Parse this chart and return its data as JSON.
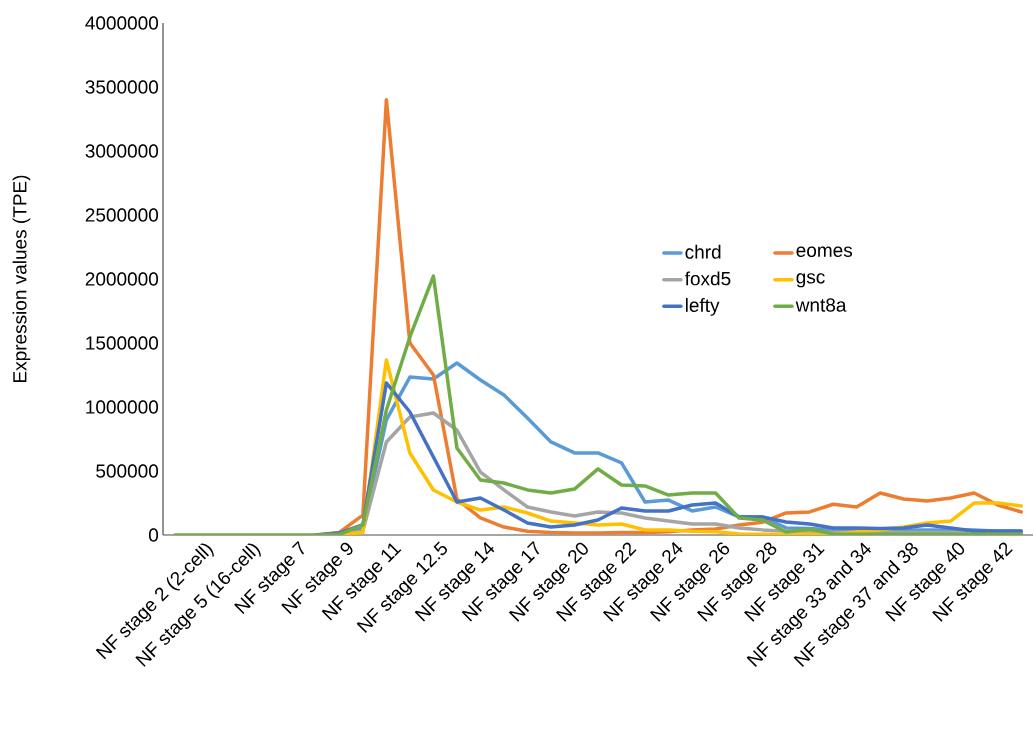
{
  "chart_data": {
    "type": "line",
    "ylabel": "Expression values (TPE)",
    "categories": [
      null,
      "NF stage 2 (2-cell)",
      null,
      "NF stage 5 (16-cell)",
      null,
      "NF stage 7",
      null,
      "NF stage 9",
      null,
      "NF stage 11",
      null,
      "NF stage 12.5",
      null,
      "NF stage 14",
      null,
      "NF stage 17",
      null,
      "NF stage 20",
      null,
      "NF stage 22",
      null,
      "NF stage 24",
      null,
      "NF stage 26",
      null,
      "NF stage 28",
      null,
      "NF stage 31",
      null,
      "NF stage 33 and 34",
      null,
      "NF stage 37 and 38",
      null,
      "NF stage 40",
      null,
      "NF stage 42",
      null
    ],
    "ylim": [
      0,
      4000000
    ],
    "yticks": [
      0,
      500000,
      1000000,
      1500000,
      2000000,
      2500000,
      3000000,
      3500000,
      4000000
    ],
    "legend": "right",
    "marker": "none",
    "line_style": "solid",
    "series": [
      {
        "name": "chrd",
        "color": "#5b9bd5",
        "values": [
          null,
          null,
          null,
          null,
          null,
          null,
          0,
          5000,
          50000,
          900000,
          1234000,
          1219000,
          1344000,
          1211000,
          1094000,
          914000,
          727000,
          641000,
          641000,
          563000,
          258000,
          273000,
          188000,
          219000,
          141000,
          140000,
          55000,
          50000,
          40000,
          40000,
          40000,
          40000,
          40000,
          40000,
          40000,
          30000,
          30000
        ]
      },
      {
        "name": "eomes",
        "color": "#ed7d31",
        "values": [
          null,
          null,
          null,
          null,
          null,
          null,
          0,
          20000,
          155000,
          3400000,
          1500000,
          1250000,
          280000,
          133000,
          62000,
          30000,
          20000,
          15000,
          15000,
          20000,
          20000,
          25000,
          40000,
          47000,
          78000,
          100000,
          172000,
          180000,
          240000,
          219000,
          328000,
          281000,
          266000,
          289000,
          328000,
          234000,
          180000
        ]
      },
      {
        "name": "foxd5",
        "color": "#a5a5a5",
        "values": [
          null,
          null,
          null,
          null,
          null,
          null,
          0,
          5000,
          30000,
          727000,
          922000,
          953000,
          820000,
          492000,
          352000,
          219000,
          180000,
          148000,
          180000,
          172000,
          133000,
          109000,
          86000,
          86000,
          55000,
          40000,
          30000,
          25000,
          20000,
          20000,
          20000,
          20000,
          20000,
          20000,
          20000,
          20000,
          20000
        ]
      },
      {
        "name": "gsc",
        "color": "#ffc000",
        "values": [
          null,
          null,
          null,
          null,
          null,
          null,
          0,
          5000,
          20000,
          1367000,
          641000,
          352000,
          258000,
          195000,
          219000,
          172000,
          109000,
          94000,
          78000,
          86000,
          40000,
          40000,
          30000,
          25000,
          8000,
          5000,
          5000,
          5000,
          5000,
          23000,
          39000,
          62000,
          94000,
          109000,
          250000,
          250000,
          227000
        ]
      },
      {
        "name": "lefty",
        "color": "#4472c4",
        "values": [
          null,
          null,
          null,
          null,
          null,
          null,
          0,
          15000,
          80000,
          1188000,
          961000,
          609000,
          258000,
          289000,
          195000,
          94000,
          62000,
          78000,
          117000,
          211000,
          188000,
          188000,
          234000,
          250000,
          141000,
          141000,
          102000,
          86000,
          55000,
          55000,
          50000,
          55000,
          78000,
          55000,
          31000,
          31000,
          31000
        ]
      },
      {
        "name": "wnt8a",
        "color": "#70ad47",
        "values": [
          0,
          0,
          0,
          0,
          0,
          0,
          0,
          5000,
          78000,
          977000,
          1547000,
          2023000,
          680000,
          430000,
          406000,
          352000,
          328000,
          359000,
          516000,
          391000,
          383000,
          312000,
          328000,
          328000,
          133000,
          117000,
          23000,
          47000,
          8000,
          5000,
          5000,
          5000,
          5000,
          5000,
          5000,
          5000,
          5000
        ]
      }
    ]
  }
}
